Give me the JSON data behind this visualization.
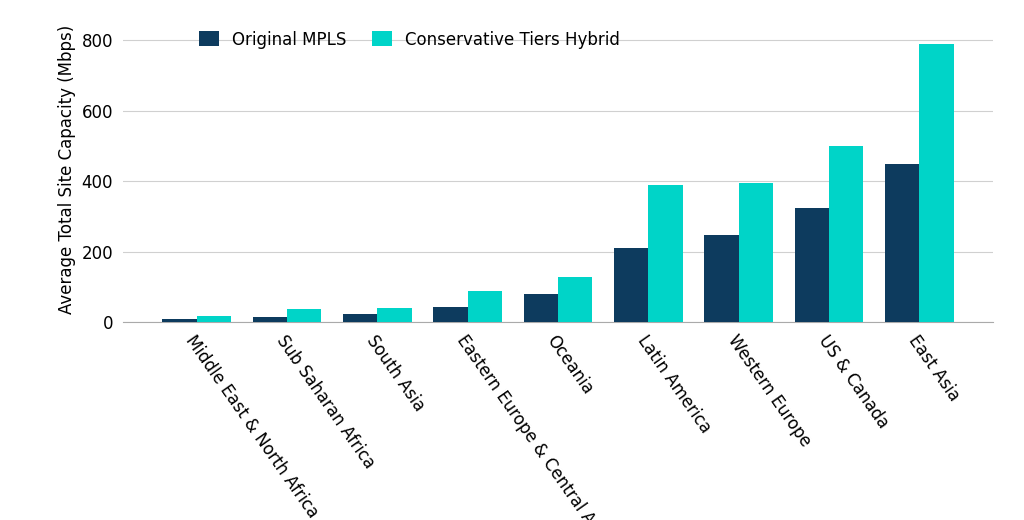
{
  "categories": [
    "Middle East & North Africa",
    "Sub Saharan Africa",
    "South Asia",
    "Eastern Europe & Central America",
    "Oceania",
    "Latin America",
    "Western Europe",
    "US & Canada",
    "East Asia"
  ],
  "mpls_values": [
    10,
    15,
    25,
    45,
    80,
    210,
    248,
    325,
    448
  ],
  "hybrid_values": [
    18,
    38,
    40,
    88,
    130,
    390,
    395,
    500,
    790
  ],
  "mpls_color": "#0d3b5e",
  "hybrid_color": "#00d4c8",
  "ylabel": "Average Total Site Capacity (Mbps)",
  "legend_mpls": "Original MPLS",
  "legend_hybrid": "Conservative Tiers Hybrid",
  "ylim": [
    0,
    870
  ],
  "yticks": [
    0,
    200,
    400,
    600,
    800
  ],
  "background_color": "#ffffff",
  "grid_color": "#d0d0d0",
  "bar_width": 0.38,
  "tick_fontsize": 12,
  "ylabel_fontsize": 12,
  "legend_fontsize": 12
}
